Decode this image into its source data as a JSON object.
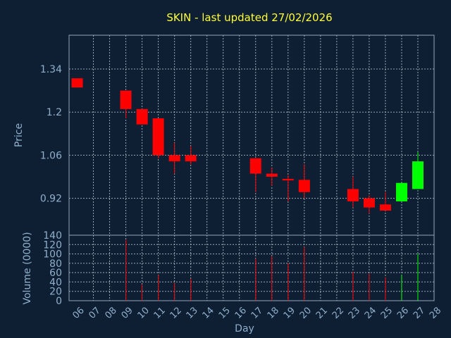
{
  "chart_data": {
    "type": "candlestick",
    "title": "SKIN - last updated 27/02/2026",
    "xlabel": "Day",
    "ylabel_price": "Price",
    "ylabel_volume": "Volume (0000)",
    "x_ticks": [
      "06",
      "07",
      "08",
      "09",
      "10",
      "11",
      "12",
      "13",
      "14",
      "15",
      "16",
      "17",
      "18",
      "19",
      "20",
      "21",
      "22",
      "23",
      "24",
      "25",
      "26",
      "27",
      "28"
    ],
    "price_ticks": [
      "1.34",
      "1.2",
      "1.06",
      "0.92"
    ],
    "price_tick_values": [
      1.34,
      1.2,
      1.06,
      0.92
    ],
    "price_range": [
      0.8,
      1.45
    ],
    "volume_ticks": [
      "140",
      "120",
      "100",
      "80",
      "60",
      "40",
      "20",
      "0"
    ],
    "volume_tick_values": [
      140,
      120,
      100,
      80,
      60,
      40,
      20,
      0
    ],
    "volume_range": [
      0,
      140
    ],
    "grid": true,
    "colors": {
      "up": "#00ff00",
      "down": "#ff0000",
      "background": "#0f1f33",
      "title": "#ffff33",
      "axis": "#8fb0cc"
    },
    "candles": [
      {
        "day": 6,
        "open": 1.31,
        "close": 1.28,
        "high": 1.31,
        "low": 1.28,
        "volume": 0,
        "direction": "down"
      },
      {
        "day": 9,
        "open": 1.27,
        "close": 1.21,
        "high": 1.27,
        "low": 1.18,
        "volume": 130,
        "direction": "down"
      },
      {
        "day": 10,
        "open": 1.21,
        "close": 1.16,
        "high": 1.21,
        "low": 1.16,
        "volume": 35,
        "direction": "down"
      },
      {
        "day": 11,
        "open": 1.18,
        "close": 1.06,
        "high": 1.18,
        "low": 1.05,
        "volume": 55,
        "direction": "down"
      },
      {
        "day": 12,
        "open": 1.06,
        "close": 1.04,
        "high": 1.1,
        "low": 1.0,
        "volume": 38,
        "direction": "down"
      },
      {
        "day": 13,
        "open": 1.06,
        "close": 1.04,
        "high": 1.09,
        "low": 1.03,
        "volume": 47,
        "direction": "down"
      },
      {
        "day": 17,
        "open": 1.05,
        "close": 1.0,
        "high": 1.05,
        "low": 0.94,
        "volume": 90,
        "direction": "down"
      },
      {
        "day": 18,
        "open": 1.0,
        "close": 0.99,
        "high": 1.02,
        "low": 0.96,
        "volume": 95,
        "direction": "down"
      },
      {
        "day": 19,
        "open": 0.983,
        "close": 0.978,
        "high": 0.995,
        "low": 0.91,
        "volume": 80,
        "direction": "down"
      },
      {
        "day": 20,
        "open": 0.98,
        "close": 0.94,
        "high": 1.03,
        "low": 0.92,
        "volume": 115,
        "direction": "down"
      },
      {
        "day": 23,
        "open": 0.95,
        "close": 0.91,
        "high": 0.99,
        "low": 0.89,
        "volume": 62,
        "direction": "down"
      },
      {
        "day": 24,
        "open": 0.92,
        "close": 0.89,
        "high": 0.93,
        "low": 0.87,
        "volume": 58,
        "direction": "down"
      },
      {
        "day": 25,
        "open": 0.9,
        "close": 0.88,
        "high": 0.94,
        "low": 0.88,
        "volume": 50,
        "direction": "down"
      },
      {
        "day": 26,
        "open": 0.91,
        "close": 0.97,
        "high": 0.97,
        "low": 0.91,
        "volume": 55,
        "direction": "up"
      },
      {
        "day": 27,
        "open": 0.95,
        "close": 1.04,
        "high": 1.07,
        "low": 0.95,
        "volume": 100,
        "direction": "up"
      }
    ]
  }
}
